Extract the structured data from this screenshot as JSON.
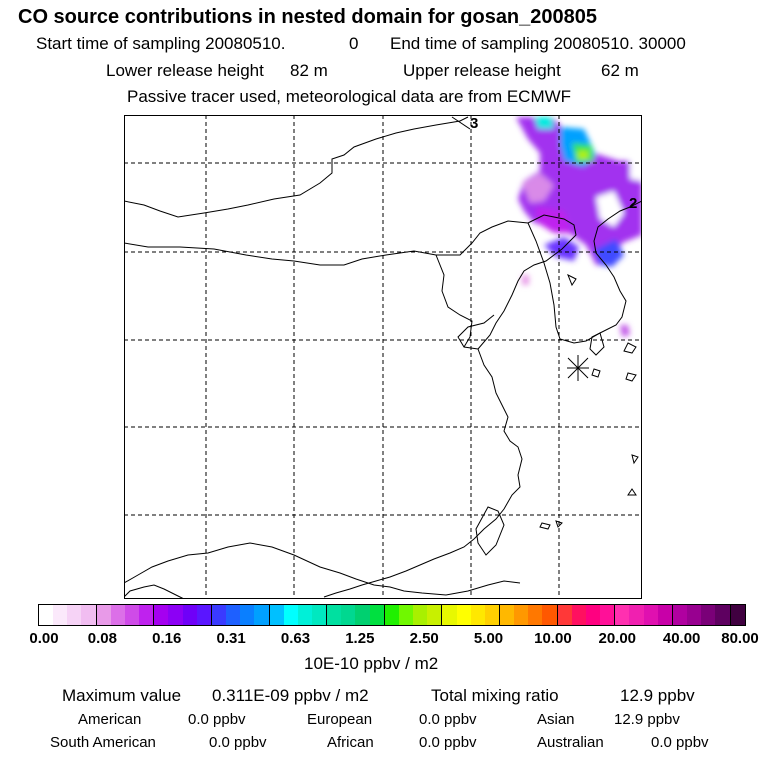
{
  "header": {
    "title": "CO  source contributions in nested domain for gosan_200805",
    "start_label": "Start time of sampling 20080510.",
    "start_value": "0",
    "end_label": "End time of sampling 20080510. 30000",
    "lower_label": "Lower release height",
    "lower_value": "82 m",
    "upper_label": "Upper release height",
    "upper_value": "62 m",
    "info": "Passive tracer used, meteorological data are from ECMWF"
  },
  "map": {
    "contour_labels": [
      "3",
      "2"
    ],
    "receptor_marker": "asterisk",
    "colors": {
      "land_line": "#000000",
      "grid_line": "#000000"
    }
  },
  "colorbar": {
    "tick_labels": [
      "0.00",
      "0.08",
      "0.16",
      "0.31",
      "0.63",
      "1.25",
      "2.50",
      "5.00",
      "10.00",
      "20.00",
      "40.00",
      "80.00"
    ],
    "unit": "10E-10 ppbv / m2",
    "colors": [
      "#ffffff",
      "#fbe9fb",
      "#f6d3f6",
      "#f1bdf1",
      "#e89ae8",
      "#dc6fe8",
      "#cf4be8",
      "#bf22ee",
      "#a500f0",
      "#8c00f5",
      "#6f00f8",
      "#5a16ff",
      "#3a3aff",
      "#1e60ff",
      "#0a7fff",
      "#00a0ff",
      "#00c0ff",
      "#00ffff",
      "#00f0d8",
      "#00e8c0",
      "#00e0a0",
      "#00d890",
      "#00d070",
      "#00e040",
      "#20f000",
      "#70f800",
      "#a8f000",
      "#c8f000",
      "#e8f800",
      "#ffff00",
      "#ffe800",
      "#ffd000",
      "#ffb800",
      "#ff9800",
      "#ff7800",
      "#ff5800",
      "#ff3838",
      "#ff1060",
      "#ff0080",
      "#ff1098",
      "#ff30b0",
      "#f020b0",
      "#e010b0",
      "#c800a8",
      "#b000a0",
      "#980090",
      "#7a0078",
      "#5e0060",
      "#400040"
    ]
  },
  "stats": {
    "max_label": "Maximum value",
    "max_value": "0.311E-09 ppbv / m2",
    "total_label": "Total mixing ratio",
    "total_value": "12.9 ppbv",
    "american_label": "American",
    "american_value": "0.0 ppbv",
    "european_label": "European",
    "european_value": "0.0 ppbv",
    "asian_label": "Asian",
    "asian_value": "12.9 ppbv",
    "south_american_label": "South American",
    "south_american_value": "0.0 ppbv",
    "african_label": "African",
    "african_value": "0.0 ppbv",
    "australian_label": "Australian",
    "australian_value": "0.0 ppbv"
  }
}
